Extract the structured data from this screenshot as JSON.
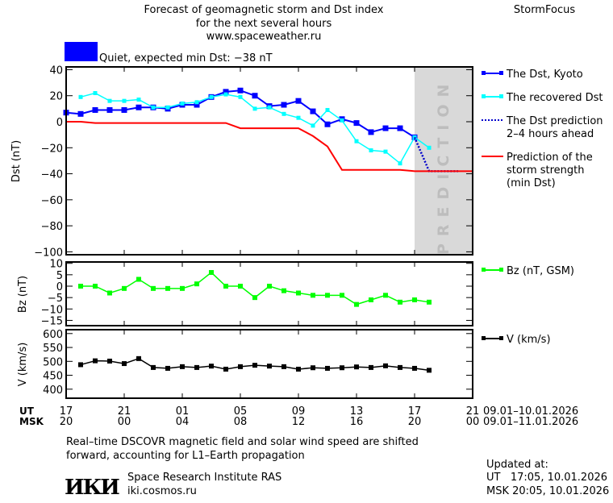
{
  "header": {
    "title_lines": [
      "Forecast of geomagnetic storm and Dst index",
      "for the next several hours",
      "www.spaceweather.ru"
    ],
    "brand": "StormFocus",
    "status_label": "Quiet, expected min Dst: −38 nT",
    "status_color": "#0000ff"
  },
  "colors": {
    "dst": "#0000ff",
    "recovered": "#00ffff",
    "prediction_line": "#0000cc",
    "strength": "#ff0000",
    "bz": "#00ff00",
    "v": "#000000",
    "prediction_zone": "#d9d9d9"
  },
  "prediction_zone_label": "PREDICTION",
  "chart_data": [
    {
      "type": "line",
      "ylabel": "Dst (nT)",
      "ylim": [
        -100,
        40
      ],
      "yticks": [
        40,
        20,
        0,
        -20,
        -40,
        -60,
        -80,
        -100
      ],
      "xlim_hours": [
        0,
        28
      ],
      "prediction_start_hour": 24,
      "series": [
        {
          "name": "The Dst, Kyoto",
          "key": "dst",
          "markers": "large",
          "x": [
            0,
            1,
            2,
            3,
            4,
            5,
            6,
            7,
            8,
            9,
            10,
            11,
            12,
            13,
            14,
            15,
            16,
            17,
            18,
            19,
            20,
            21,
            22,
            23,
            24
          ],
          "values": [
            7,
            6,
            9,
            9,
            9,
            11,
            11,
            10,
            13,
            13,
            19,
            23,
            24,
            20,
            12,
            13,
            16,
            8,
            -2,
            2,
            -1,
            -8,
            -5,
            -5,
            -12
          ]
        },
        {
          "name": "The recovered Dst",
          "key": "recovered",
          "markers": "small",
          "x": [
            1,
            2,
            3,
            4,
            5,
            6,
            7,
            8,
            9,
            10,
            11,
            12,
            13,
            14,
            15,
            16,
            17,
            18,
            19,
            20,
            21,
            22,
            23,
            24,
            25
          ],
          "values": [
            19,
            22,
            16,
            16,
            17,
            11,
            11,
            14,
            15,
            19,
            21,
            19,
            10,
            11,
            6,
            3,
            -3,
            9,
            1,
            -15,
            -22,
            -23,
            -32,
            -12,
            -20
          ]
        },
        {
          "name": "The Dst prediction 2–4 hours ahead",
          "legend_lines": [
            "The Dst prediction",
            "2–4 hours ahead"
          ],
          "key": "prediction_line",
          "style": "dotted",
          "x": [
            24,
            25,
            27
          ],
          "values": [
            -12,
            -38,
            -38
          ]
        },
        {
          "name": "Prediction of the storm strength (min Dst)",
          "legend_lines": [
            "Prediction of the",
            "storm strength",
            "(min Dst)"
          ],
          "key": "strength",
          "x": [
            0,
            1,
            2,
            11,
            12,
            16,
            17,
            18,
            19,
            23,
            24,
            28
          ],
          "values": [
            0,
            0,
            -1,
            -1,
            -5,
            -5,
            -11,
            -19,
            -37,
            -37,
            -38,
            -38
          ]
        }
      ]
    },
    {
      "type": "line",
      "ylabel": "Bz (nT)",
      "ylim": [
        -17,
        11
      ],
      "yticks": [
        10,
        5,
        0,
        -5,
        -10,
        -15
      ],
      "series": [
        {
          "name": "Bz (nT, GSM)",
          "key": "bz",
          "x": [
            1,
            2,
            3,
            4,
            5,
            6,
            7,
            8,
            9,
            10,
            11,
            12,
            13,
            14,
            15,
            16,
            17,
            18,
            19,
            20,
            21,
            22,
            23,
            24,
            25
          ],
          "values": [
            0,
            0,
            -3,
            -1,
            3,
            -1,
            -1,
            -1,
            1,
            6,
            0,
            0,
            -5,
            0,
            -2,
            -3,
            -4,
            -4,
            -4,
            -8,
            -6,
            -4,
            -7,
            -6,
            -7
          ]
        }
      ]
    },
    {
      "type": "line",
      "ylabel": "V (km/s)",
      "ylim": [
        360,
        620
      ],
      "yticks": [
        600,
        550,
        500,
        450,
        400
      ],
      "series": [
        {
          "name": "V (km/s)",
          "key": "v",
          "x": [
            1,
            2,
            3,
            4,
            5,
            6,
            7,
            8,
            9,
            10,
            11,
            12,
            13,
            14,
            15,
            16,
            17,
            18,
            19,
            20,
            21,
            22,
            23,
            24,
            25
          ],
          "values": [
            488,
            502,
            501,
            492,
            510,
            478,
            475,
            481,
            478,
            483,
            472,
            481,
            486,
            483,
            481,
            472,
            477,
            475,
            477,
            480,
            478,
            484,
            478,
            475,
            468
          ]
        }
      ]
    }
  ],
  "time_axis": {
    "ut_label": "UT",
    "msk_label": "MSK",
    "ut_ticks": [
      "17",
      "21",
      "01",
      "05",
      "09",
      "13",
      "17",
      "21"
    ],
    "msk_ticks": [
      "20",
      "00",
      "04",
      "08",
      "12",
      "16",
      "20",
      "00"
    ],
    "ut_range": "09.01–10.01.2026",
    "msk_range": "09.01–11.01.2026"
  },
  "footer": {
    "note_lines": [
      "Real–time DSCOVR magnetic field and solar wind speed are shifted",
      "forward, accounting for L1–Earth propagation"
    ],
    "logo_text": "IKI",
    "institute": "Space Research Institute RAS",
    "site": "iki.cosmos.ru",
    "updated_label": "Updated at:",
    "updated_ut": "UT   17:05, 10.01.2026",
    "updated_msk": "MSK 20:05, 10.01.2026"
  }
}
